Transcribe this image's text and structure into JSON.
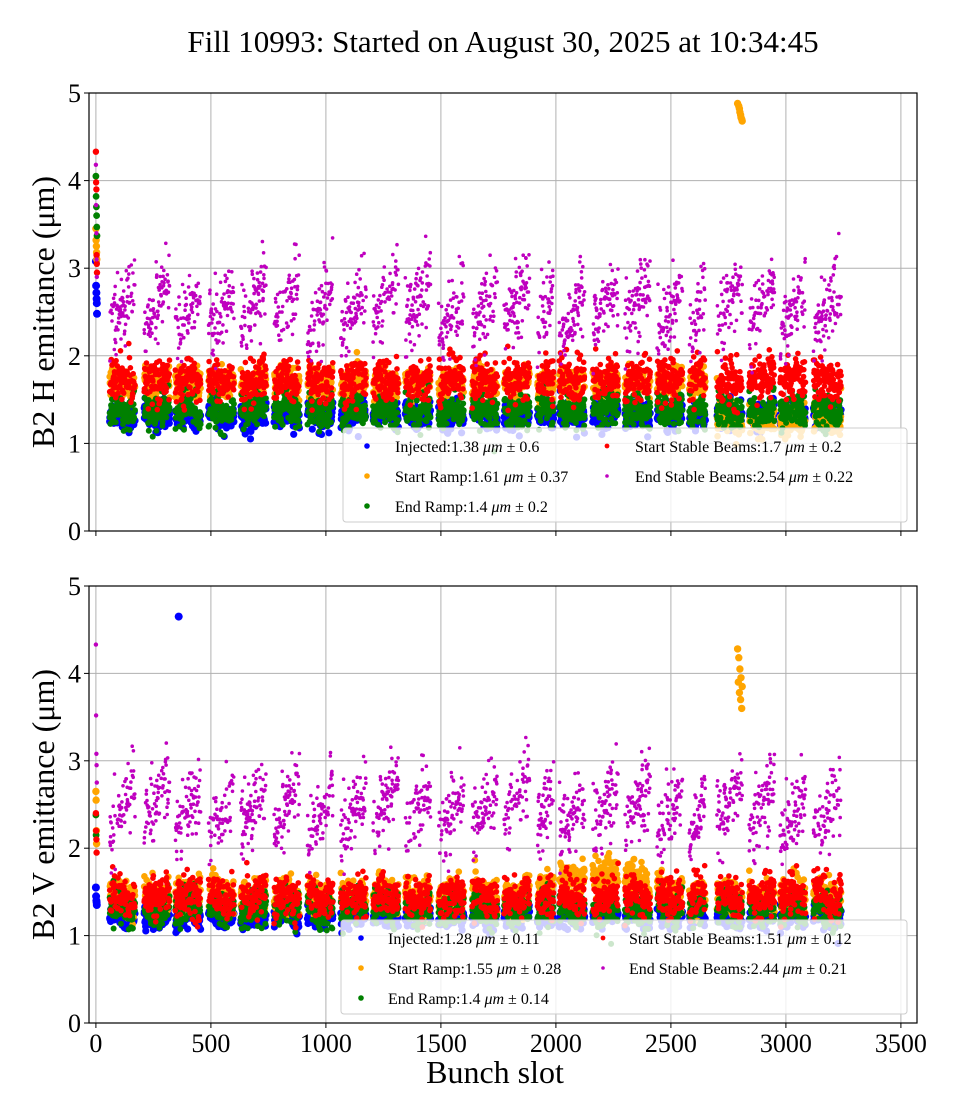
{
  "title": "Fill 10993: Started on August 30, 2025 at 10:34:45",
  "chart_data": [
    {
      "type": "scatter",
      "panel": "top",
      "ylabel": "B2 H emittance (μm)",
      "xlabel": "",
      "xlim": [
        -30,
        3570
      ],
      "ylim": [
        0,
        5
      ],
      "xticks": [
        0,
        500,
        1000,
        1500,
        2000,
        2500,
        3000,
        3500
      ],
      "yticks": [
        0,
        1,
        2,
        3,
        4,
        5
      ],
      "grid": true,
      "legend_placement": "lower-right",
      "legend": [
        {
          "name": "Injected",
          "mean": 1.38,
          "std": 0.6,
          "color": "#0000ff"
        },
        {
          "name": "Start Ramp",
          "mean": 1.61,
          "std": 0.37,
          "color": "#ffa500"
        },
        {
          "name": "End Ramp",
          "mean": 1.4,
          "std": 0.2,
          "color": "#008000"
        },
        {
          "name": "Start Stable Beams",
          "mean": 1.7,
          "std": 0.2,
          "color": "#ff0000"
        },
        {
          "name": "End Stable Beams",
          "mean": 2.54,
          "std": 0.22,
          "color": "#bf00bf"
        }
      ],
      "series_levels": {
        "Injected": [
          1.32,
          0.07
        ],
        "Start Ramp": [
          1.7,
          0.08
        ],
        "End Ramp": [
          1.37,
          0.09
        ],
        "Start Stable Beams": [
          1.72,
          0.12
        ],
        "End Stable Beams": [
          2.55,
          0.2
        ]
      },
      "outliers": [
        {
          "series": "Start Ramp",
          "x": [
            2790,
            2795,
            2800,
            2805,
            2810,
            2798,
            2803,
            2808
          ],
          "y": [
            4.88,
            4.85,
            4.78,
            4.72,
            4.68,
            4.82,
            4.75,
            4.7
          ]
        },
        {
          "series": "End Stable Beams",
          "x": [
            0,
            1,
            2,
            3,
            4
          ],
          "y": [
            4.18,
            3.72,
            3.4,
            3.1,
            2.9
          ]
        },
        {
          "series": "Start Stable Beams",
          "x": [
            0,
            1,
            2,
            3,
            4,
            5
          ],
          "y": [
            4.33,
            3.98,
            3.9,
            3.15,
            3.05,
            2.95
          ]
        },
        {
          "series": "End Ramp",
          "x": [
            0,
            1,
            2,
            3,
            4,
            5
          ],
          "y": [
            4.05,
            3.82,
            3.7,
            3.6,
            3.47,
            3.37
          ]
        },
        {
          "series": "Start Ramp",
          "x": [
            0,
            1,
            2,
            3,
            4
          ],
          "y": [
            3.45,
            3.32,
            3.25,
            3.18,
            3.1
          ]
        },
        {
          "series": "Injected",
          "x": [
            0,
            1,
            2,
            3,
            4,
            5
          ],
          "y": [
            3.08,
            2.8,
            2.72,
            2.65,
            2.6,
            2.48
          ]
        }
      ]
    },
    {
      "type": "scatter",
      "panel": "bottom",
      "ylabel": "B2 V emittance (μm)",
      "xlabel": "Bunch slot",
      "xlim": [
        -30,
        3570
      ],
      "ylim": [
        0,
        5
      ],
      "xticks": [
        0,
        500,
        1000,
        1500,
        2000,
        2500,
        3000,
        3500
      ],
      "yticks": [
        0,
        1,
        2,
        3,
        4,
        5
      ],
      "grid": true,
      "legend_placement": "lower-right",
      "legend": [
        {
          "name": "Injected",
          "mean": 1.28,
          "std": 0.11,
          "color": "#0000ff"
        },
        {
          "name": "Start Ramp",
          "mean": 1.55,
          "std": 0.28,
          "color": "#ffa500"
        },
        {
          "name": "End Ramp",
          "mean": 1.4,
          "std": 0.14,
          "color": "#008000"
        },
        {
          "name": "Start Stable Beams",
          "mean": 1.51,
          "std": 0.12,
          "color": "#ff0000"
        },
        {
          "name": "End Stable Beams",
          "mean": 2.44,
          "std": 0.21,
          "color": "#bf00bf"
        }
      ],
      "series_levels": {
        "Injected": [
          1.22,
          0.06
        ],
        "Start Ramp": [
          1.45,
          0.1
        ],
        "End Ramp": [
          1.3,
          0.09
        ],
        "Start Stable Beams": [
          1.45,
          0.11
        ],
        "End Stable Beams": [
          2.45,
          0.2
        ]
      },
      "outliers": [
        {
          "series": "Injected",
          "x": [
            360
          ],
          "y": [
            4.65
          ]
        },
        {
          "series": "Start Ramp",
          "x": [
            2790,
            2795,
            2800,
            2805,
            2810,
            2798,
            2803,
            2808,
            2793
          ],
          "y": [
            4.28,
            4.18,
            4.05,
            3.95,
            3.85,
            3.78,
            3.7,
            3.6,
            3.9
          ]
        },
        {
          "series": "End Stable Beams",
          "x": [
            0,
            1,
            2,
            3,
            4
          ],
          "y": [
            4.33,
            3.52,
            3.08,
            2.95,
            2.75
          ]
        },
        {
          "series": "Start Ramp",
          "x": [
            0,
            1,
            2,
            3
          ],
          "y": [
            2.65,
            2.55,
            2.2,
            2.05
          ]
        },
        {
          "series": "Start Stable Beams",
          "x": [
            0,
            1,
            2,
            3
          ],
          "y": [
            2.4,
            2.2,
            2.1,
            1.95
          ]
        },
        {
          "series": "End Ramp",
          "x": [
            0,
            1
          ],
          "y": [
            2.38,
            2.15
          ]
        },
        {
          "series": "Injected",
          "x": [
            0,
            1,
            2,
            3,
            4
          ],
          "y": [
            1.55,
            1.45,
            1.4,
            1.38,
            1.35
          ]
        }
      ]
    }
  ],
  "trains": [
    [
      60,
      170
    ],
    [
      210,
      320
    ],
    [
      345,
      455
    ],
    [
      490,
      600
    ],
    [
      630,
      740
    ],
    [
      775,
      885
    ],
    [
      920,
      1030
    ],
    [
      1065,
      1175
    ],
    [
      1205,
      1315
    ],
    [
      1345,
      1455
    ],
    [
      1490,
      1600
    ],
    [
      1635,
      1745
    ],
    [
      1775,
      1885
    ],
    [
      1920,
      1990
    ],
    [
      2015,
      2125
    ],
    [
      2160,
      2270
    ],
    [
      2300,
      2410
    ],
    [
      2440,
      2550
    ],
    [
      2580,
      2650
    ],
    [
      2700,
      2810
    ],
    [
      2840,
      2950
    ],
    [
      2975,
      3085
    ],
    [
      3120,
      3240
    ]
  ]
}
